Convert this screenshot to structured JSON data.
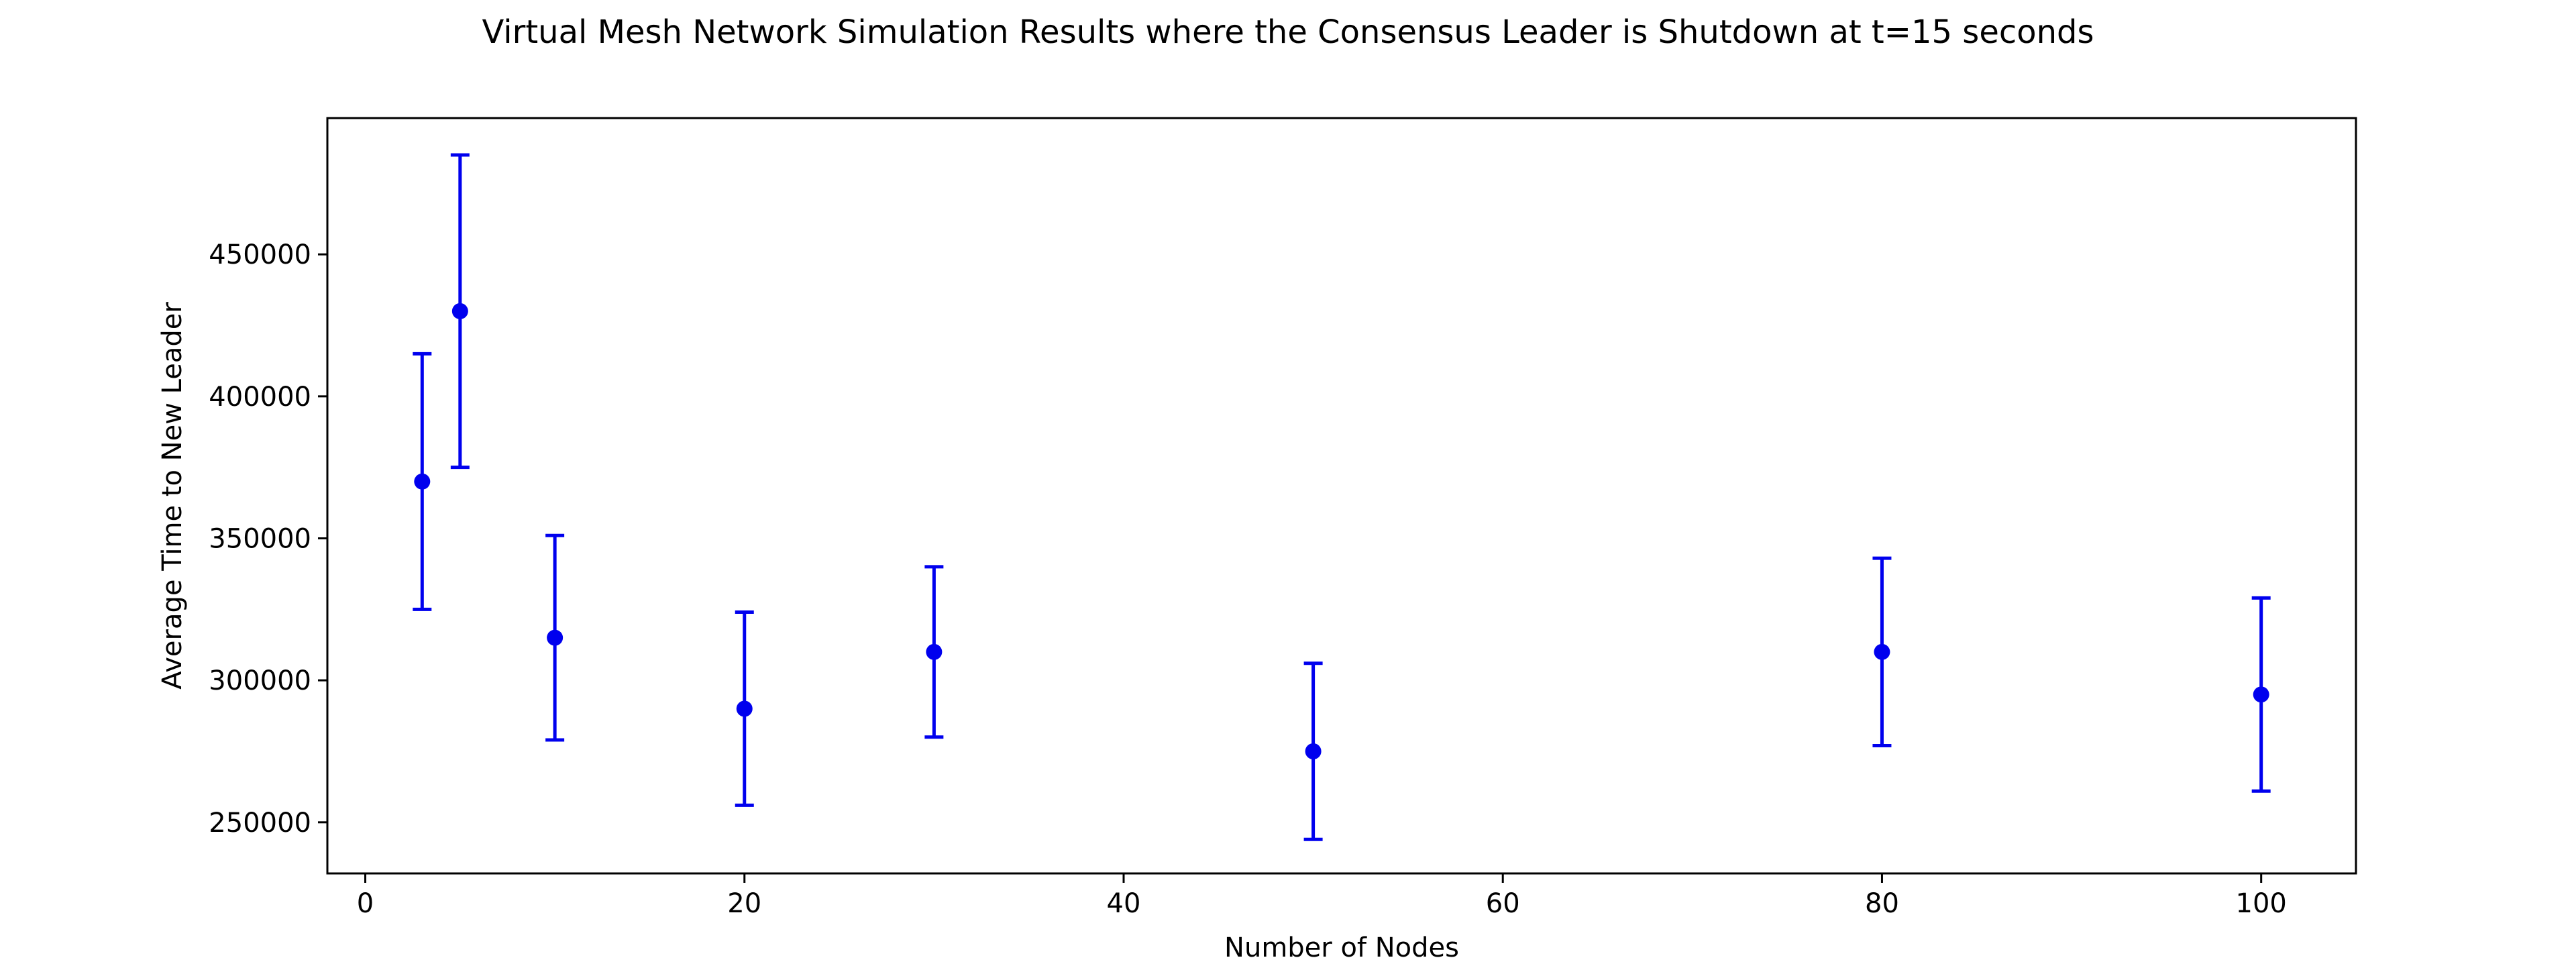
{
  "chart_data": {
    "type": "scatter",
    "title": "Virtual Mesh Network Simulation Results where the Consensus Leader is Shutdown at t=15 seconds",
    "xlabel": "Number of Nodes",
    "ylabel": "Average Time to New Leader",
    "xlim": [
      -2,
      105
    ],
    "ylim": [
      232000,
      498000
    ],
    "x_ticks": [
      0,
      20,
      40,
      60,
      80,
      100
    ],
    "x_tick_labels": [
      "0",
      "20",
      "40",
      "60",
      "80",
      "100"
    ],
    "y_ticks": [
      250000,
      300000,
      350000,
      400000,
      450000
    ],
    "y_tick_labels": [
      "250000",
      "300000",
      "350000",
      "400000",
      "450000"
    ],
    "grid": false,
    "legend": "none",
    "color": "#0000ee",
    "series": [
      {
        "x": [
          3,
          5,
          10,
          20,
          30,
          50,
          80,
          100
        ],
        "y": [
          370000,
          430000,
          315000,
          290000,
          310000,
          275000,
          310000,
          295000
        ],
        "yerr_low": [
          325000,
          375000,
          279000,
          256000,
          280000,
          244000,
          277000,
          261000
        ],
        "yerr_high": [
          415000,
          485000,
          351000,
          324000,
          340000,
          306000,
          343000,
          329000
        ]
      }
    ]
  }
}
